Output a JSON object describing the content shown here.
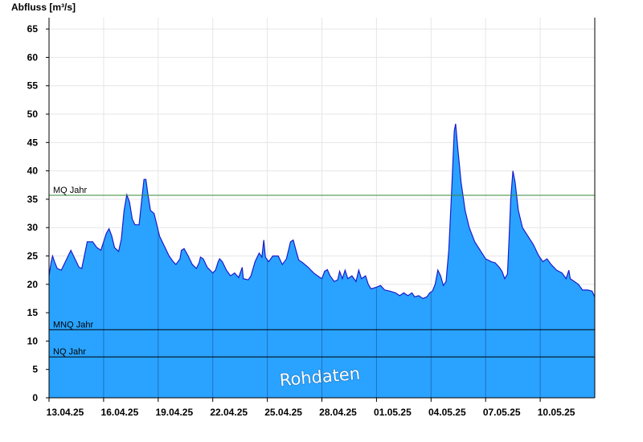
{
  "colors": {
    "area_fill": "#29a3ff",
    "area_stroke": "#1c1ccc",
    "grid": "#e6e6e6",
    "mq_line": "#3a8a3a",
    "ref_line": "#000000",
    "watermark": "#ffffff"
  },
  "chart_data": {
    "type": "area",
    "ylabel": "Abfluss [m³/s]",
    "ylim": [
      0,
      67
    ],
    "yticks": [
      0,
      5,
      10,
      15,
      20,
      25,
      30,
      35,
      40,
      45,
      50,
      55,
      60,
      65
    ],
    "xlim": [
      0,
      20
    ],
    "xtick_labels": [
      "13.04.25",
      "16.04.25",
      "19.04.25",
      "22.04.25",
      "25.04.25",
      "28.04.25",
      "01.05.25",
      "04.05.25",
      "07.05.25",
      "10.05.25"
    ],
    "xtick_positions": [
      0,
      2,
      4,
      6,
      8,
      10,
      12,
      14,
      16,
      18
    ],
    "grid": true,
    "series": [
      {
        "values": [
          [
            0.0,
            21.5
          ],
          [
            0.08,
            24.0
          ],
          [
            0.13,
            25.0
          ],
          [
            0.2,
            24.0
          ],
          [
            0.3,
            22.8
          ],
          [
            0.45,
            22.5
          ],
          [
            0.55,
            23.5
          ],
          [
            0.8,
            26.0
          ],
          [
            0.95,
            24.5
          ],
          [
            1.1,
            23.0
          ],
          [
            1.2,
            22.8
          ],
          [
            1.4,
            27.5
          ],
          [
            1.6,
            27.5
          ],
          [
            1.75,
            26.5
          ],
          [
            1.9,
            26.0
          ],
          [
            2.1,
            29.0
          ],
          [
            2.2,
            29.8
          ],
          [
            2.3,
            28.5
          ],
          [
            2.4,
            26.5
          ],
          [
            2.55,
            25.8
          ],
          [
            2.65,
            28.0
          ],
          [
            2.75,
            33.0
          ],
          [
            2.85,
            35.8
          ],
          [
            2.95,
            34.5
          ],
          [
            3.05,
            31.5
          ],
          [
            3.15,
            30.5
          ],
          [
            3.3,
            30.5
          ],
          [
            3.4,
            35.0
          ],
          [
            3.48,
            38.5
          ],
          [
            3.55,
            38.5
          ],
          [
            3.62,
            36.0
          ],
          [
            3.72,
            33.0
          ],
          [
            3.85,
            32.5
          ],
          [
            3.95,
            30.5
          ],
          [
            4.05,
            28.5
          ],
          [
            4.2,
            27.0
          ],
          [
            4.4,
            25.0
          ],
          [
            4.55,
            24.0
          ],
          [
            4.65,
            23.5
          ],
          [
            4.8,
            24.5
          ],
          [
            4.85,
            26.0
          ],
          [
            4.95,
            26.3
          ],
          [
            5.1,
            25.0
          ],
          [
            5.25,
            23.5
          ],
          [
            5.4,
            22.8
          ],
          [
            5.5,
            23.8
          ],
          [
            5.55,
            24.8
          ],
          [
            5.65,
            24.5
          ],
          [
            5.8,
            23.0
          ],
          [
            6.0,
            22.0
          ],
          [
            6.1,
            22.5
          ],
          [
            6.2,
            24.0
          ],
          [
            6.25,
            24.5
          ],
          [
            6.35,
            24.0
          ],
          [
            6.5,
            22.5
          ],
          [
            6.65,
            21.5
          ],
          [
            6.8,
            22.0
          ],
          [
            6.95,
            21.2
          ],
          [
            7.08,
            23.0
          ],
          [
            7.12,
            21.0
          ],
          [
            7.3,
            20.8
          ],
          [
            7.4,
            21.5
          ],
          [
            7.55,
            24.0
          ],
          [
            7.7,
            25.5
          ],
          [
            7.8,
            24.8
          ],
          [
            7.87,
            27.8
          ],
          [
            7.93,
            24.8
          ],
          [
            8.05,
            24.0
          ],
          [
            8.2,
            25.0
          ],
          [
            8.4,
            25.0
          ],
          [
            8.55,
            23.5
          ],
          [
            8.7,
            24.5
          ],
          [
            8.85,
            27.5
          ],
          [
            8.95,
            27.8
          ],
          [
            9.05,
            26.0
          ],
          [
            9.15,
            24.3
          ],
          [
            9.3,
            23.8
          ],
          [
            9.5,
            23.0
          ],
          [
            9.7,
            22.0
          ],
          [
            9.9,
            21.3
          ],
          [
            10.0,
            21.0
          ],
          [
            10.1,
            22.3
          ],
          [
            10.2,
            22.6
          ],
          [
            10.3,
            21.5
          ],
          [
            10.45,
            20.5
          ],
          [
            10.58,
            20.8
          ],
          [
            10.65,
            22.3
          ],
          [
            10.75,
            21.0
          ],
          [
            10.85,
            22.5
          ],
          [
            10.95,
            21.0
          ],
          [
            11.1,
            21.5
          ],
          [
            11.25,
            20.5
          ],
          [
            11.35,
            22.5
          ],
          [
            11.45,
            21.0
          ],
          [
            11.6,
            21.5
          ],
          [
            11.7,
            20.0
          ],
          [
            11.8,
            19.2
          ],
          [
            12.0,
            19.5
          ],
          [
            12.15,
            19.8
          ],
          [
            12.3,
            19.0
          ],
          [
            12.5,
            18.8
          ],
          [
            12.7,
            18.5
          ],
          [
            12.85,
            18.0
          ],
          [
            13.0,
            18.5
          ],
          [
            13.15,
            18.0
          ],
          [
            13.3,
            18.5
          ],
          [
            13.4,
            17.8
          ],
          [
            13.55,
            18.0
          ],
          [
            13.7,
            17.5
          ],
          [
            13.85,
            17.8
          ],
          [
            13.95,
            18.5
          ],
          [
            14.05,
            18.8
          ],
          [
            14.15,
            20.0
          ],
          [
            14.25,
            22.5
          ],
          [
            14.35,
            21.5
          ],
          [
            14.45,
            19.8
          ],
          [
            14.55,
            20.5
          ],
          [
            14.65,
            26.0
          ],
          [
            14.75,
            36.0
          ],
          [
            14.85,
            47.0
          ],
          [
            14.9,
            48.3
          ],
          [
            14.98,
            44.0
          ],
          [
            15.1,
            38.0
          ],
          [
            15.25,
            33.0
          ],
          [
            15.4,
            30.0
          ],
          [
            15.6,
            27.5
          ],
          [
            15.8,
            26.0
          ],
          [
            16.0,
            24.5
          ],
          [
            16.2,
            24.0
          ],
          [
            16.35,
            23.8
          ],
          [
            16.5,
            23.0
          ],
          [
            16.6,
            22.3
          ],
          [
            16.7,
            21.0
          ],
          [
            16.8,
            21.8
          ],
          [
            16.85,
            27.0
          ],
          [
            16.92,
            35.0
          ],
          [
            17.0,
            40.0
          ],
          [
            17.08,
            38.0
          ],
          [
            17.2,
            33.0
          ],
          [
            17.35,
            30.0
          ],
          [
            17.55,
            28.5
          ],
          [
            17.75,
            27.0
          ],
          [
            17.95,
            25.0
          ],
          [
            18.1,
            24.0
          ],
          [
            18.25,
            24.5
          ],
          [
            18.4,
            23.5
          ],
          [
            18.6,
            22.5
          ],
          [
            18.8,
            22.0
          ],
          [
            18.95,
            21.0
          ],
          [
            19.05,
            22.5
          ],
          [
            19.1,
            21.0
          ],
          [
            19.25,
            20.5
          ],
          [
            19.4,
            20.0
          ],
          [
            19.55,
            19.0
          ],
          [
            19.75,
            19.0
          ],
          [
            19.9,
            18.8
          ],
          [
            20.0,
            17.8
          ]
        ]
      }
    ],
    "reference_lines": [
      {
        "label": "MQ Jahr",
        "value": 35.7,
        "color": "#3a8a3a"
      },
      {
        "label": "MNQ Jahr",
        "value": 12.0,
        "color": "#000000"
      },
      {
        "label": "NQ Jahr",
        "value": 7.2,
        "color": "#000000"
      }
    ],
    "watermark": "Rohdaten"
  }
}
